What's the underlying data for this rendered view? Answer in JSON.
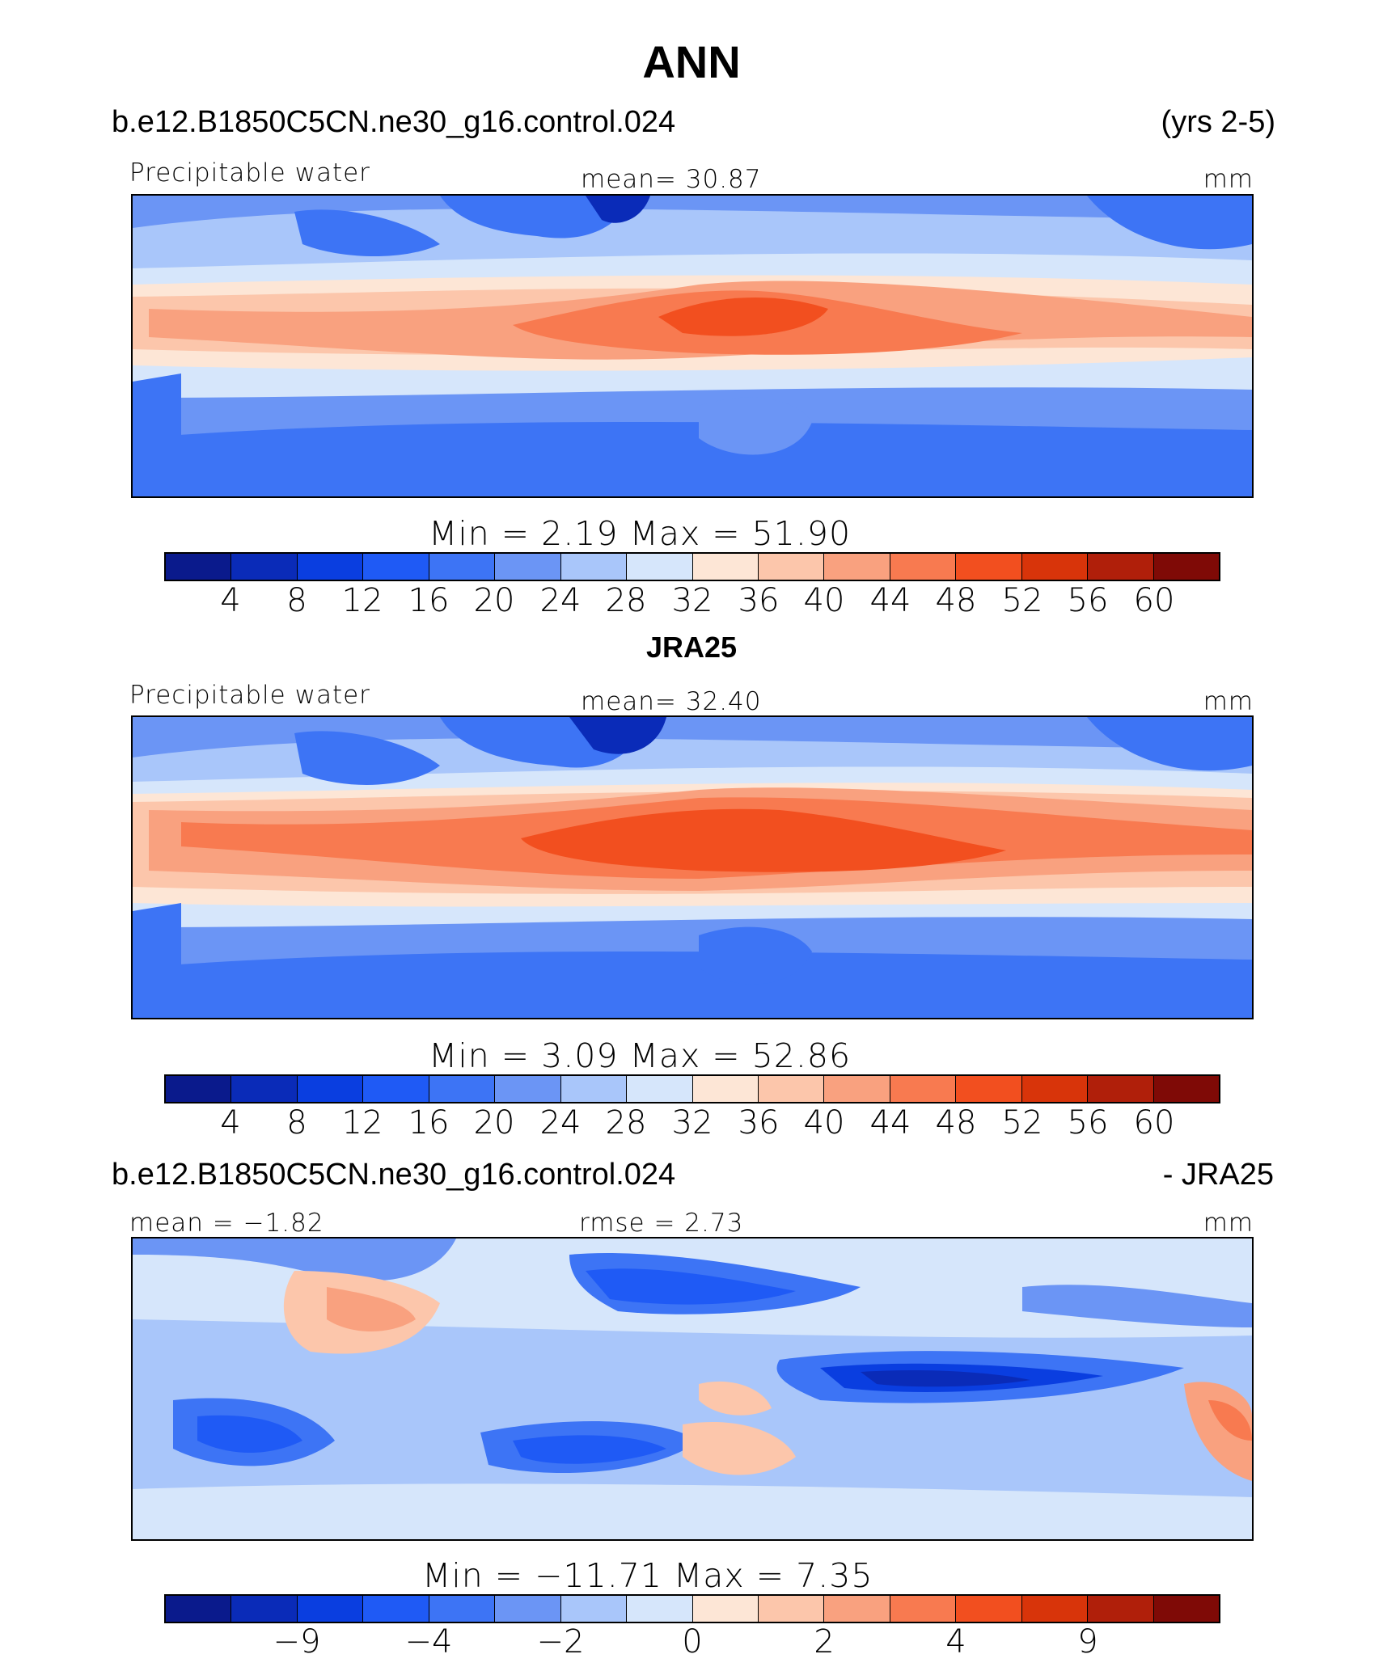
{
  "title": "ANN",
  "colors": [
    "#0a1a8c",
    "#0a2bb8",
    "#0a3ee0",
    "#1f5af5",
    "#3d74f5",
    "#6b95f5",
    "#a9c6fa",
    "#d6e6fb",
    "#fde6d6",
    "#fcc6ab",
    "#f9a17f",
    "#f87a50",
    "#f24f1f",
    "#d8340a",
    "#b01f0a",
    "#7f0a06"
  ],
  "panels": [
    {
      "left_header": "b.e12.B1850C5CN.ne30_g16.control.024",
      "right_header": "(yrs 2-5)",
      "left_label": "Precipitable  water",
      "center_label": "mean=   30.87",
      "right_label": "mm",
      "stats": "Min  =     2.19  Max  =    51.90",
      "colorbar_labels": [
        "4",
        "8",
        "12",
        "16",
        "20",
        "24",
        "28",
        "32",
        "36",
        "40",
        "44",
        "48",
        "52",
        "56",
        "60"
      ]
    },
    {
      "center_header": "JRA25",
      "left_label": "Precipitable  water",
      "center_label": "mean=   32.40",
      "right_label": "mm",
      "stats": "Min  =     3.09  Max  =    52.86",
      "colorbar_labels": [
        "4",
        "8",
        "12",
        "16",
        "20",
        "24",
        "28",
        "32",
        "36",
        "40",
        "44",
        "48",
        "52",
        "56",
        "60"
      ]
    },
    {
      "left_header": "b.e12.B1850C5CN.ne30_g16.control.024",
      "right_header": "- JRA25",
      "left_label": "mean =   −1.82",
      "center_label": "rmse =     2.73",
      "right_label": "mm",
      "stats": "Min  =  −11.71  Max  =     7.35",
      "colorbar_labels": [
        "−9",
        "",
        "−4",
        "",
        "−2",
        "",
        "0",
        "",
        "2",
        "",
        "4",
        "",
        "9",
        "",
        ""
      ]
    }
  ]
}
